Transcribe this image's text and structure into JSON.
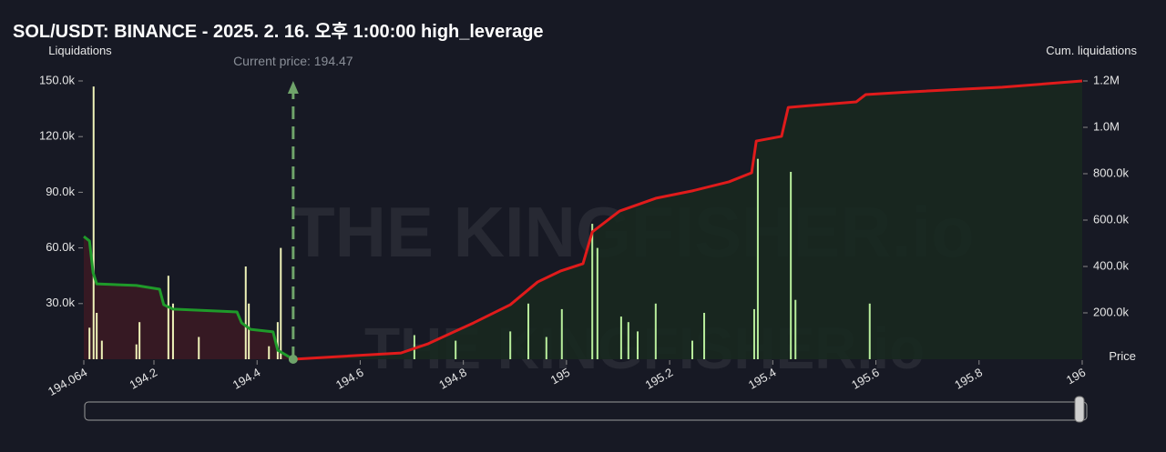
{
  "chart_data": {
    "type": "combo",
    "title": "SOL/USDT: BINANCE - 2025. 2. 16. 오후 1:00:00 high_leverage",
    "y_label": "Liquidations",
    "y2_label": "Cum. liquidations",
    "x_label": "Price",
    "watermark": "THE KINGFISHER.io",
    "current_price": {
      "value": 194.47,
      "label": "Current price: 194.47"
    },
    "xlim": [
      194.064,
      196
    ],
    "xticks": [
      194.064,
      194.2,
      194.4,
      194.6,
      194.8,
      195,
      195.2,
      195.4,
      195.6,
      195.8,
      196
    ],
    "ylim": [
      0,
      150000
    ],
    "yticks": [
      {
        "value": 30000,
        "label": "30.0k"
      },
      {
        "value": 60000,
        "label": "60.0k"
      },
      {
        "value": 90000,
        "label": "90.0k"
      },
      {
        "value": 120000,
        "label": "120.0k"
      },
      {
        "value": 150000,
        "label": "150.0k"
      }
    ],
    "y2lim": [
      0,
      1200000
    ],
    "y2ticks": [
      {
        "value": 200000,
        "label": "200.0k"
      },
      {
        "value": 400000,
        "label": "400.0k"
      },
      {
        "value": 600000,
        "label": "600.0k"
      },
      {
        "value": 800000,
        "label": "800.0k"
      },
      {
        "value": 1000000,
        "label": "1.0M"
      },
      {
        "value": 1200000,
        "label": "1.2M"
      }
    ],
    "series": [
      {
        "type": "line",
        "axis": "y2",
        "color": "#1f9a2a",
        "fill": "#3a1a24",
        "x": [
          194.064,
          194.075,
          194.082,
          194.089,
          194.166,
          194.211,
          194.219,
          194.237,
          194.361,
          194.37,
          194.387,
          194.431,
          194.44,
          194.47
        ],
        "values": [
          529000,
          510000,
          373000,
          325000,
          318000,
          302000,
          235000,
          216000,
          204000,
          157000,
          129000,
          118000,
          39000,
          0
        ]
      },
      {
        "type": "line",
        "axis": "y2",
        "color": "#e01b1b",
        "fill": "#18281f",
        "x": [
          194.47,
          194.679,
          194.732,
          194.82,
          194.891,
          194.944,
          194.988,
          195.032,
          195.05,
          195.103,
          195.173,
          195.244,
          195.315,
          195.359,
          195.368,
          195.417,
          195.43,
          195.562,
          195.58,
          195.668,
          195.845,
          196
        ],
        "values": [
          0,
          27000,
          67000,
          157000,
          235000,
          333000,
          380000,
          412000,
          549000,
          639000,
          694000,
          726000,
          765000,
          804000,
          941000,
          961000,
          1086000,
          1110000,
          1141000,
          1153000,
          1173000,
          1200000
        ]
      },
      {
        "type": "bar",
        "axis": "y",
        "color": "#eef2b8",
        "x": [
          194.075,
          194.083,
          194.089,
          194.099,
          194.166,
          194.172,
          194.228,
          194.237,
          194.287,
          194.378,
          194.384,
          194.423,
          194.44,
          194.446
        ],
        "values": [
          17000,
          147000,
          25000,
          10000,
          8000,
          20000,
          45000,
          30000,
          12000,
          50000,
          30000,
          7000,
          20000,
          60000
        ]
      },
      {
        "type": "bar",
        "axis": "y",
        "color": "#b8ee9c",
        "x": [
          194.705,
          194.785,
          194.891,
          194.926,
          194.961,
          194.991,
          195.05,
          195.06,
          195.106,
          195.12,
          195.138,
          195.173,
          195.244,
          195.267,
          195.364,
          195.371,
          195.435,
          195.444,
          195.588
        ],
        "values": [
          13000,
          10000,
          15000,
          30000,
          12000,
          27000,
          73000,
          60000,
          23000,
          20000,
          15000,
          30000,
          10000,
          25000,
          27000,
          108000,
          101000,
          32000,
          30000
        ]
      }
    ]
  }
}
